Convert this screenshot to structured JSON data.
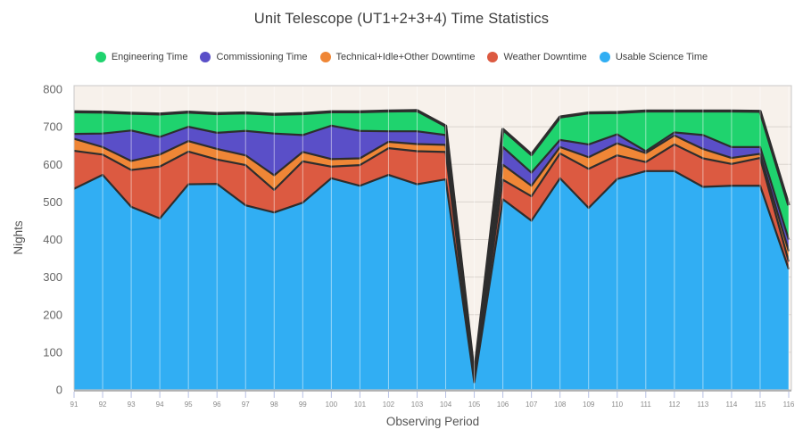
{
  "title": "Unit Telescope (UT1+2+3+4) Time Statistics",
  "chart_data": {
    "type": "area",
    "stacked": true,
    "title": "Unit Telescope (UT1+2+3+4) Time Statistics",
    "xlabel": "Observing Period",
    "ylabel": "Nights",
    "ylim": [
      0,
      800
    ],
    "y_ticks": [
      0,
      100,
      200,
      300,
      400,
      500,
      600,
      700,
      800
    ],
    "grid": "on",
    "legend_position": "top",
    "plot_bg_color": "#f7f1eb",
    "line_stroke_color": "#2d2d2d",
    "x": [
      91,
      92,
      93,
      94,
      95,
      96,
      97,
      98,
      99,
      100,
      101,
      102,
      103,
      104,
      105,
      106,
      107,
      108,
      109,
      110,
      111,
      112,
      113,
      114,
      115,
      116
    ],
    "series": [
      {
        "name": "Usable Science Time",
        "color": "#31aef3",
        "values": [
          535,
          572,
          487,
          456,
          547,
          548,
          491,
          472,
          498,
          563,
          543,
          572,
          547,
          560,
          20,
          507,
          450,
          563,
          484,
          561,
          582,
          582,
          540,
          543,
          543,
          321
        ]
      },
      {
        "name": "Weather Downtime",
        "color": "#dc5a41",
        "values": [
          101,
          54,
          98,
          138,
          87,
          65,
          107,
          60,
          110,
          31,
          55,
          71,
          88,
          73,
          5,
          52,
          65,
          66,
          104,
          63,
          24,
          71,
          76,
          58,
          74,
          20
        ]
      },
      {
        "name": "Technical+Idle+Other Downtime",
        "color": "#ef8636",
        "values": [
          32,
          20,
          24,
          32,
          28,
          28,
          26,
          39,
          25,
          20,
          18,
          17,
          19,
          19,
          4,
          40,
          28,
          17,
          31,
          32,
          24,
          24,
          25,
          16,
          11,
          28
        ]
      },
      {
        "name": "Commissioning Time",
        "color": "#5a4fc8",
        "values": [
          13,
          36,
          81,
          47,
          38,
          43,
          65,
          111,
          45,
          89,
          73,
          28,
          34,
          26,
          3,
          47,
          35,
          19,
          34,
          24,
          5,
          8,
          37,
          29,
          18,
          31
        ]
      },
      {
        "name": "Engineering Time",
        "color": "#1fd36e",
        "values": [
          59,
          57,
          46,
          61,
          39,
          51,
          48,
          51,
          57,
          37,
          51,
          54,
          55,
          24,
          8,
          47,
          48,
          61,
          84,
          58,
          107,
          57,
          64,
          96,
          95,
          91
        ]
      }
    ],
    "legend_order": [
      "Engineering Time",
      "Commissioning Time",
      "Technical+Idle+Other Downtime",
      "Weather Downtime",
      "Usable Science Time"
    ]
  }
}
